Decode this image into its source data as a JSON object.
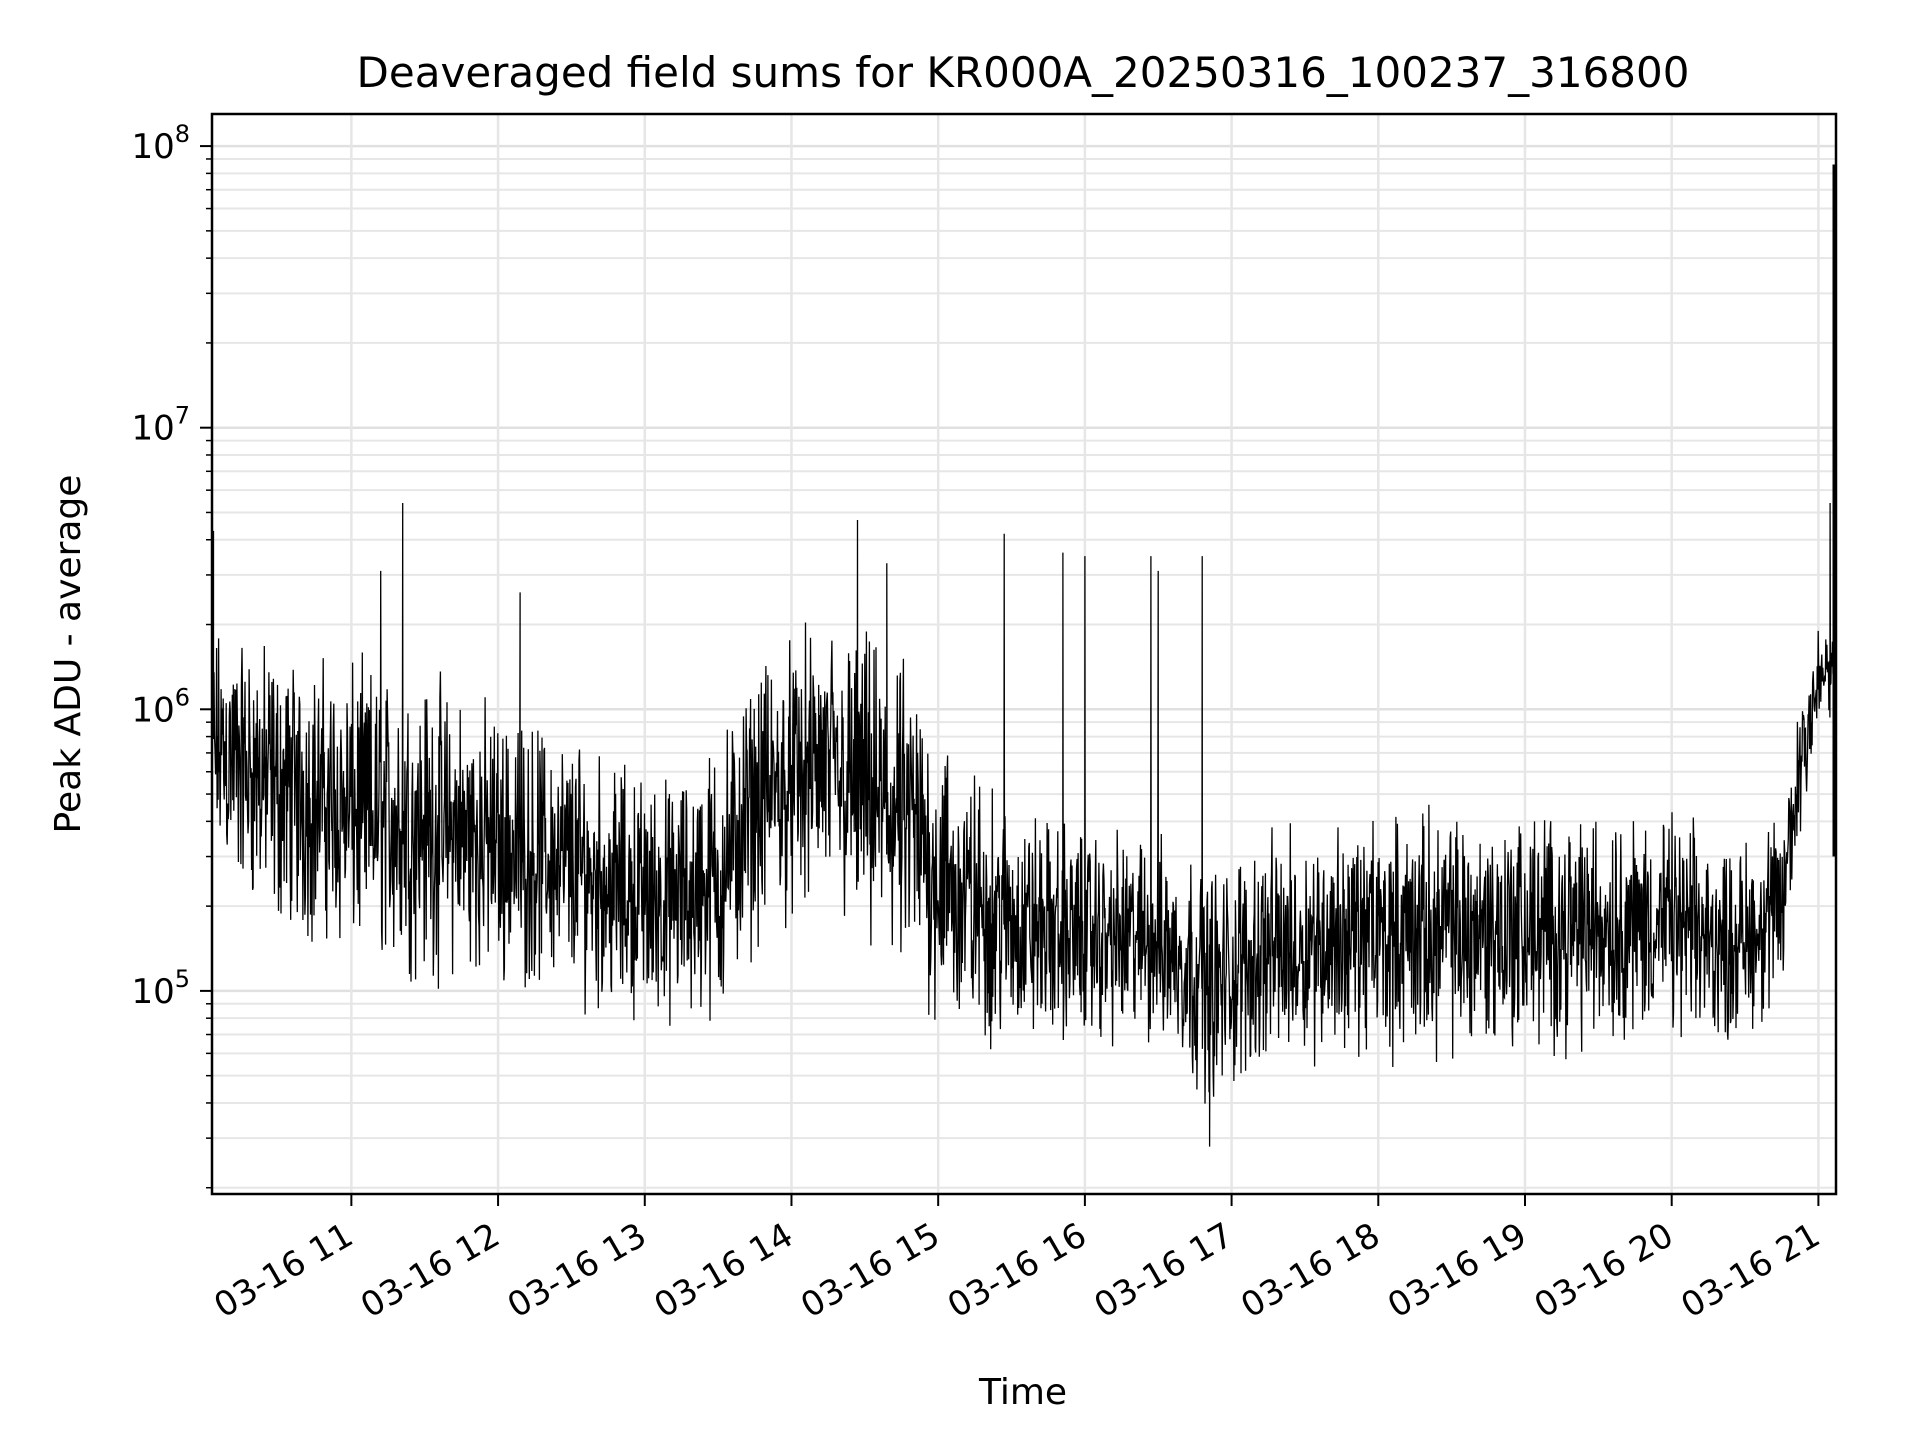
{
  "chart_data": {
    "type": "line",
    "title": "Deaveraged field sums for KR000A_20250316_100237_316800",
    "xlabel": "Time",
    "ylabel": "Peak ADU - average",
    "yscale": "log",
    "ylim": [
      19000,
      130000000
    ],
    "xlim_hours": [
      10.05,
      21.12
    ],
    "grid": true,
    "line_color": "#000000",
    "x_ticks": [
      {
        "label": "03-16 11",
        "hour": 11
      },
      {
        "label": "03-16 12",
        "hour": 12
      },
      {
        "label": "03-16 13",
        "hour": 13
      },
      {
        "label": "03-16 14",
        "hour": 14
      },
      {
        "label": "03-16 15",
        "hour": 15
      },
      {
        "label": "03-16 16",
        "hour": 16
      },
      {
        "label": "03-16 17",
        "hour": 17
      },
      {
        "label": "03-16 18",
        "hour": 18
      },
      {
        "label": "03-16 19",
        "hour": 19
      },
      {
        "label": "03-16 20",
        "hour": 20
      },
      {
        "label": "03-16 21",
        "hour": 21
      }
    ],
    "y_ticks": [
      {
        "base": "10",
        "exp": "5",
        "value": 100000
      },
      {
        "base": "10",
        "exp": "6",
        "value": 1000000
      },
      {
        "base": "10",
        "exp": "7",
        "value": 10000000
      },
      {
        "base": "10",
        "exp": "8",
        "value": 100000000
      }
    ],
    "series": [
      {
        "envelope": [
          {
            "hour": 10.05,
            "lo": 250000,
            "hi": 2200000
          },
          {
            "hour": 10.5,
            "lo": 150000,
            "hi": 1800000
          },
          {
            "hour": 11.0,
            "lo": 120000,
            "hi": 1600000
          },
          {
            "hour": 11.5,
            "lo": 100000,
            "hi": 1500000
          },
          {
            "hour": 12.0,
            "lo": 100000,
            "hi": 1100000
          },
          {
            "hour": 12.5,
            "lo": 90000,
            "hi": 900000
          },
          {
            "hour": 12.8,
            "lo": 75000,
            "hi": 700000
          },
          {
            "hour": 13.2,
            "lo": 70000,
            "hi": 600000
          },
          {
            "hour": 13.5,
            "lo": 70000,
            "hi": 900000
          },
          {
            "hour": 13.8,
            "lo": 150000,
            "hi": 1600000
          },
          {
            "hour": 14.2,
            "lo": 180000,
            "hi": 2200000
          },
          {
            "hour": 14.5,
            "lo": 120000,
            "hi": 2000000
          },
          {
            "hour": 14.8,
            "lo": 90000,
            "hi": 1600000
          },
          {
            "hour": 15.1,
            "lo": 60000,
            "hi": 800000
          },
          {
            "hour": 15.5,
            "lo": 60000,
            "hi": 500000
          },
          {
            "hour": 16.0,
            "lo": 60000,
            "hi": 400000
          },
          {
            "hour": 16.5,
            "lo": 60000,
            "hi": 380000
          },
          {
            "hour": 16.9,
            "lo": 35000,
            "hi": 300000
          },
          {
            "hour": 17.2,
            "lo": 50000,
            "hi": 380000
          },
          {
            "hour": 17.6,
            "lo": 55000,
            "hi": 420000
          },
          {
            "hour": 18.0,
            "lo": 55000,
            "hi": 450000
          },
          {
            "hour": 18.5,
            "lo": 55000,
            "hi": 480000
          },
          {
            "hour": 19.0,
            "lo": 55000,
            "hi": 480000
          },
          {
            "hour": 19.5,
            "lo": 60000,
            "hi": 480000
          },
          {
            "hour": 20.0,
            "lo": 65000,
            "hi": 450000
          },
          {
            "hour": 20.4,
            "lo": 60000,
            "hi": 350000
          },
          {
            "hour": 20.75,
            "lo": 80000,
            "hi": 450000
          },
          {
            "hour": 20.9,
            "lo": 400000,
            "hi": 1800000
          },
          {
            "hour": 21.05,
            "lo": 900000,
            "hi": 2200000
          },
          {
            "hour": 21.12,
            "lo": 800000,
            "hi": 1600000
          }
        ],
        "spikes": [
          {
            "hour": 10.06,
            "value": 4300000
          },
          {
            "hour": 11.2,
            "value": 3100000
          },
          {
            "hour": 11.35,
            "value": 5400000
          },
          {
            "hour": 12.15,
            "value": 2600000
          },
          {
            "hour": 14.45,
            "value": 4700000
          },
          {
            "hour": 14.65,
            "value": 3300000
          },
          {
            "hour": 15.45,
            "value": 4200000
          },
          {
            "hour": 15.85,
            "value": 3600000
          },
          {
            "hour": 16.0,
            "value": 3500000
          },
          {
            "hour": 16.45,
            "value": 3500000
          },
          {
            "hour": 16.5,
            "value": 3100000
          },
          {
            "hour": 16.8,
            "value": 3500000
          },
          {
            "hour": 16.85,
            "value": 28000
          },
          {
            "hour": 21.08,
            "value": 5400000
          },
          {
            "hour": 21.12,
            "value": 86000000
          },
          {
            "hour": 21.12,
            "value": 300000
          }
        ]
      }
    ]
  }
}
